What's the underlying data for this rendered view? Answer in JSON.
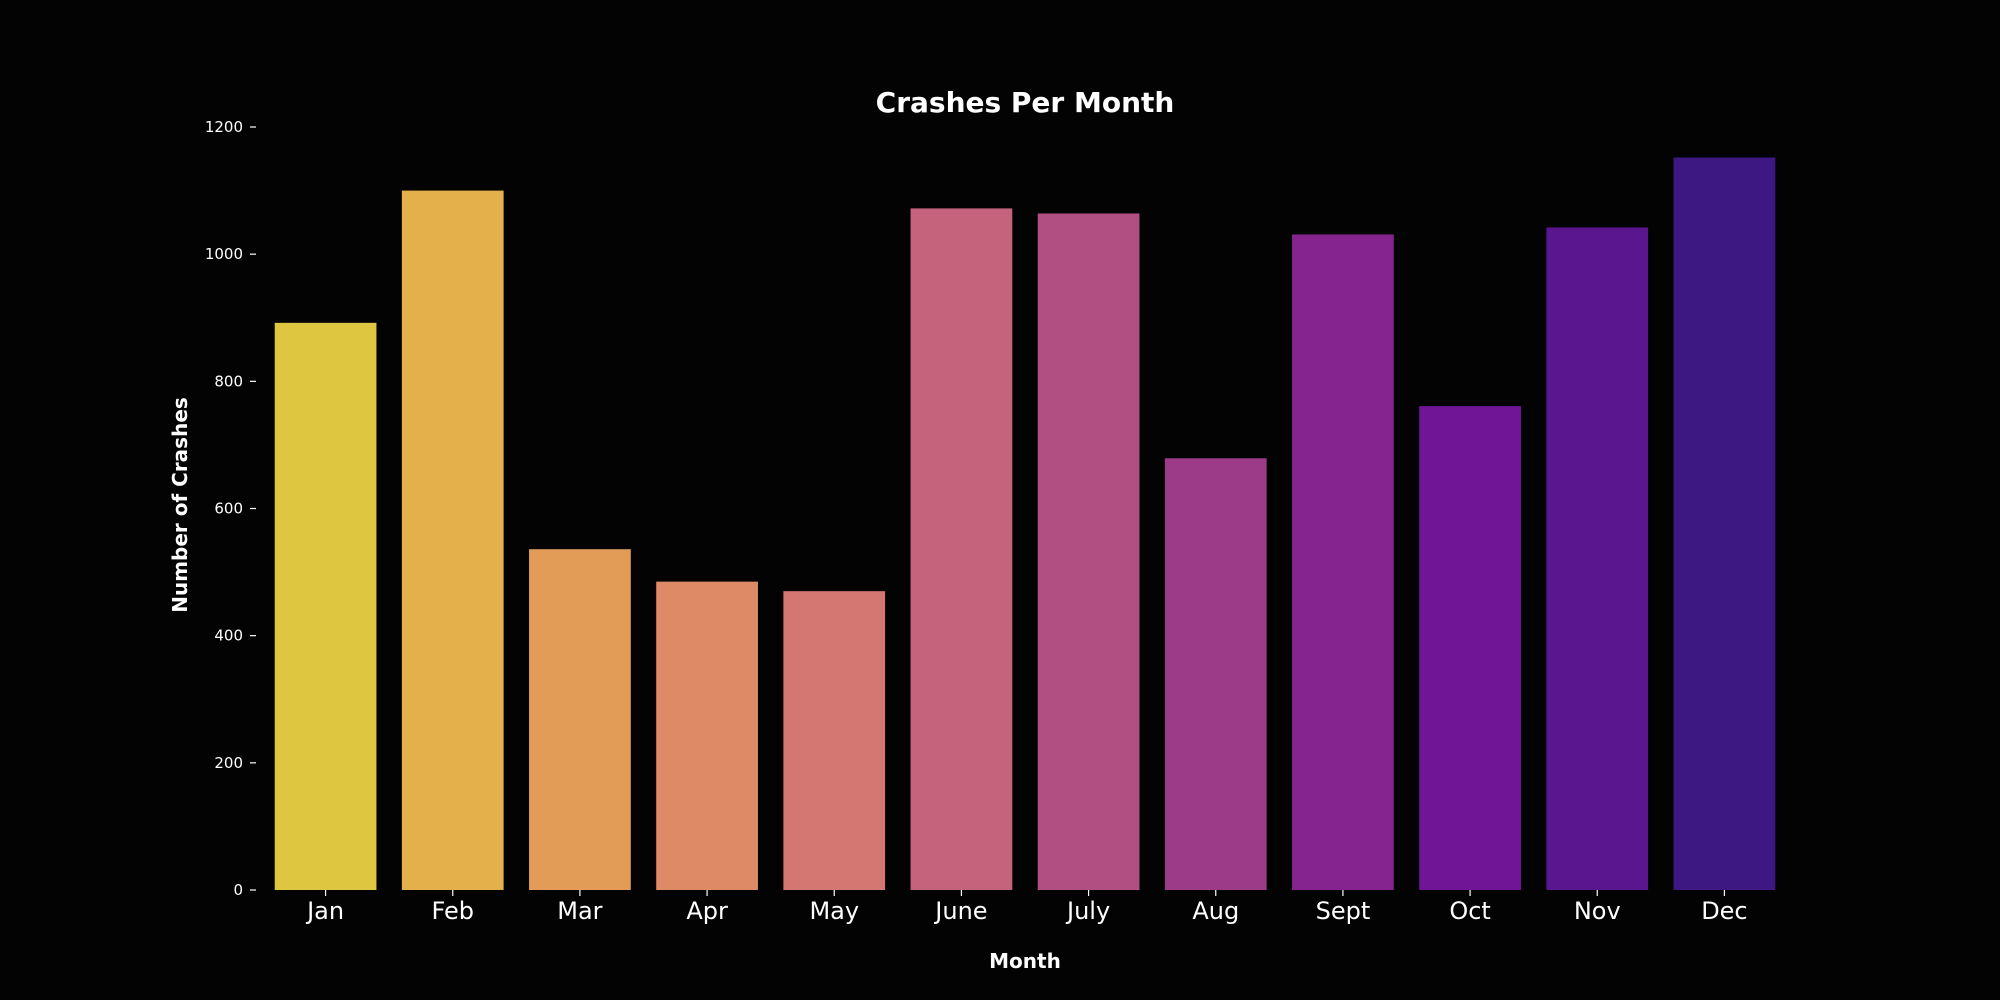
{
  "chart_data": {
    "type": "bar",
    "title": "Crashes Per Month",
    "xlabel": "Month",
    "ylabel": "Number of Crashes",
    "categories": [
      "Jan",
      "Feb",
      "Mar",
      "Apr",
      "May",
      "June",
      "July",
      "Aug",
      "Sept",
      "Oct",
      "Nov",
      "Dec"
    ],
    "values": [
      892,
      1100,
      536,
      485,
      470,
      1072,
      1064,
      679,
      1031,
      761,
      1042,
      1152
    ],
    "colors": [
      "#dec641",
      "#e3b04c",
      "#e39c58",
      "#de8a66",
      "#d47772",
      "#c5637d",
      "#b24f82",
      "#9c3b88",
      "#85248f",
      "#701596",
      "#5a168f",
      "#3d1882"
    ],
    "ylim": [
      0,
      1200
    ],
    "yticks": [
      0,
      200,
      400,
      600,
      800,
      1000,
      1200
    ],
    "grid": false,
    "legend": false,
    "background": "#030303",
    "text_color": "#ffffff"
  }
}
